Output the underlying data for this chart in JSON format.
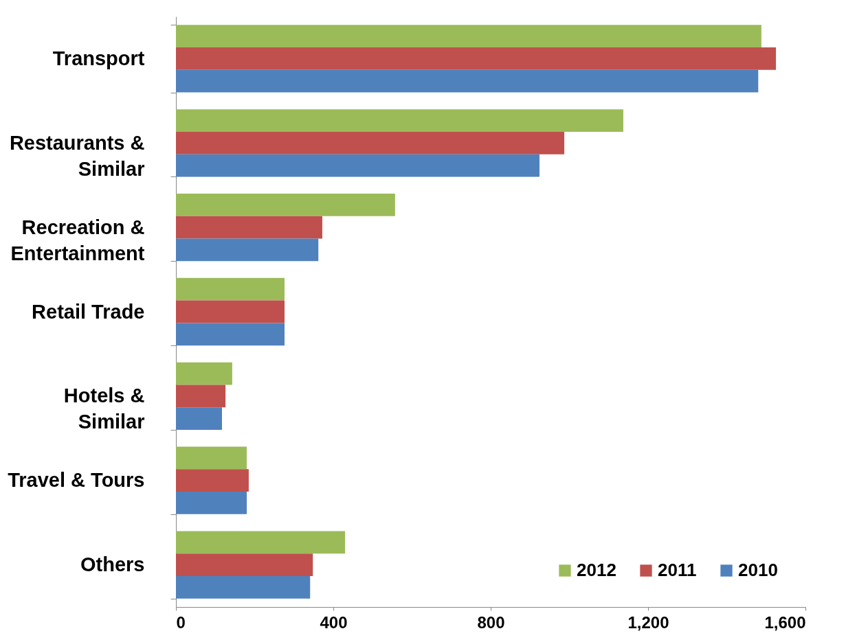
{
  "chart_data": {
    "type": "bar",
    "orientation": "horizontal",
    "categories": [
      "Transport",
      "Restaurants & Similar",
      "Recreation & Entertainment",
      "Retail Trade",
      "Hotels & Similar",
      "Travel & Tours",
      "Others"
    ],
    "series": [
      {
        "name": "2012",
        "color": "#9bbb59",
        "values": [
          1488,
          1137,
          557,
          276,
          143,
          180,
          430
        ]
      },
      {
        "name": "2011",
        "color": "#c0504d",
        "values": [
          1525,
          987,
          372,
          276,
          126,
          185,
          348
        ]
      },
      {
        "name": "2010",
        "color": "#4f81bd",
        "values": [
          1480,
          924,
          362,
          276,
          117,
          180,
          341
        ]
      }
    ],
    "xlim": [
      0,
      1600
    ],
    "xticks": [
      0,
      {
        "value": 400,
        "label": "400"
      },
      {
        "value": 800,
        "label": "800"
      },
      {
        "value": 1200,
        "label": "1,200"
      },
      {
        "value": 1600,
        "label": "1,600"
      }
    ],
    "grid": false,
    "legend": "bottom right"
  }
}
